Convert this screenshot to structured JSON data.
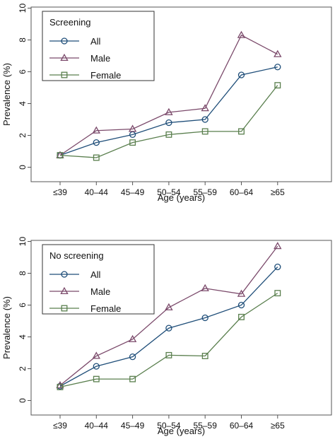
{
  "chart_data": [
    {
      "type": "line",
      "legend_title": "Screening",
      "xlabel": "Age (years)",
      "ylabel": "Prevalence (%)",
      "ylim": [
        0,
        10
      ],
      "yticks": [
        "0",
        "2",
        "4",
        "6",
        "8",
        "10"
      ],
      "categories": [
        "≤39",
        "40–44",
        "45–49",
        "50–54",
        "55–59",
        "60–64",
        "≥65"
      ],
      "legend_position": "top-left",
      "series": [
        {
          "name": "All",
          "marker": "circle",
          "color": "#1f4e79",
          "values": [
            0.75,
            1.55,
            2.05,
            2.8,
            3.0,
            5.8,
            6.3
          ]
        },
        {
          "name": "Male",
          "marker": "triangle",
          "color": "#7b4a6b",
          "values": [
            0.75,
            2.3,
            2.4,
            3.45,
            3.7,
            8.3,
            7.1
          ]
        },
        {
          "name": "Female",
          "marker": "square",
          "color": "#5a7f4e",
          "values": [
            0.75,
            0.6,
            1.55,
            2.05,
            2.25,
            2.25,
            5.15
          ]
        }
      ]
    },
    {
      "type": "line",
      "legend_title": "No screening",
      "xlabel": "Age (years)",
      "ylabel": "Prevalence (%)",
      "ylim": [
        0,
        10
      ],
      "yticks": [
        "0",
        "2",
        "4",
        "6",
        "8",
        "10"
      ],
      "categories": [
        "≤39",
        "40–44",
        "45–49",
        "50–54",
        "55–59",
        "60–64",
        "≥65"
      ],
      "legend_position": "top-left",
      "series": [
        {
          "name": "All",
          "marker": "circle",
          "color": "#1f4e79",
          "values": [
            0.9,
            2.15,
            2.75,
            4.55,
            5.2,
            6.0,
            8.4
          ]
        },
        {
          "name": "Male",
          "marker": "triangle",
          "color": "#7b4a6b",
          "values": [
            0.95,
            2.8,
            3.85,
            5.85,
            7.05,
            6.7,
            9.7
          ]
        },
        {
          "name": "Female",
          "marker": "square",
          "color": "#5a7f4e",
          "values": [
            0.85,
            1.35,
            1.35,
            2.85,
            2.8,
            5.25,
            6.75
          ]
        }
      ]
    }
  ]
}
